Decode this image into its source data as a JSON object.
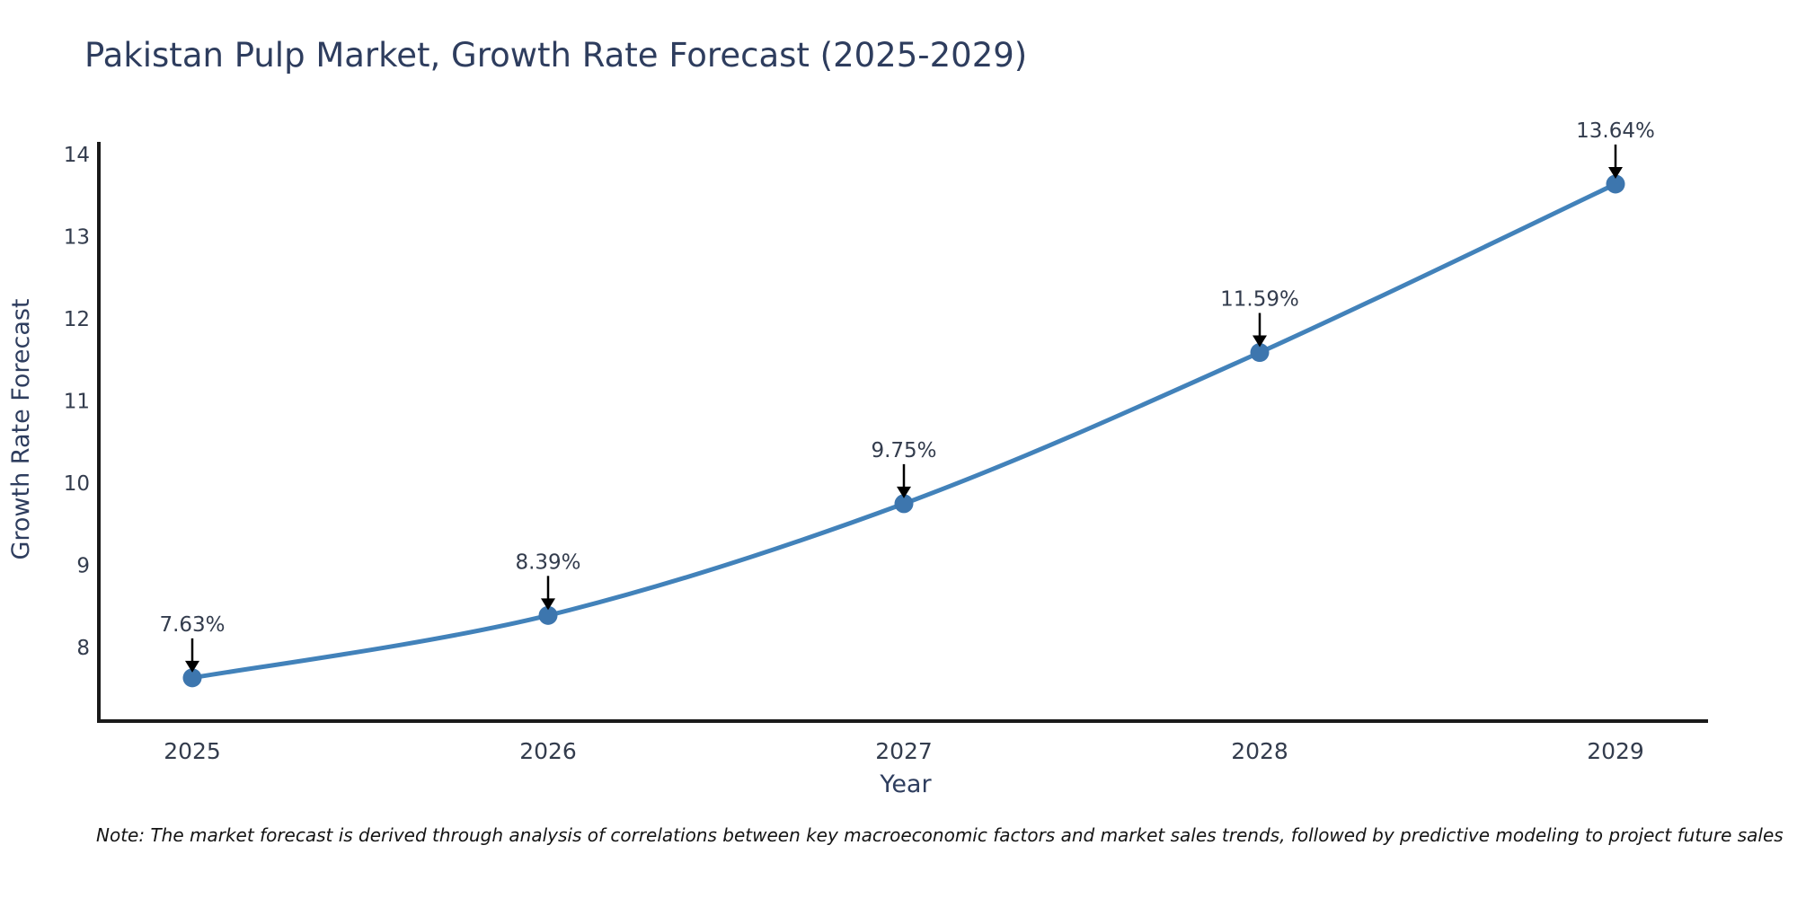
{
  "note": "Note: The market forecast is derived through analysis of correlations between key macroeconomic factors and market sales trends, followed by predictive modeling to project future sales",
  "chart_data": {
    "type": "line",
    "title": "Pakistan Pulp Market, Growth Rate Forecast (2025-2029)",
    "xlabel": "Year",
    "ylabel": "Growth Rate Forecast",
    "x": [
      2025,
      2026,
      2027,
      2028,
      2029
    ],
    "y": [
      7.63,
      8.39,
      9.75,
      11.59,
      13.64
    ],
    "point_labels": [
      "7.63%",
      "8.39%",
      "9.75%",
      "11.59%",
      "13.64%"
    ],
    "xticks": [
      "2025",
      "2026",
      "2027",
      "2028",
      "2029"
    ],
    "yticks": [
      8,
      9,
      10,
      11,
      12,
      13,
      14
    ],
    "xlim": [
      2024.74,
      2029.26
    ],
    "ylim": [
      7.08,
      14.13
    ],
    "grid": false,
    "legend_position": "none",
    "line_color": "#4282ba",
    "marker_color": "#3d76ae",
    "axis_color": "#1a1a1a",
    "arrow_color": "#000000",
    "smooth": true
  }
}
